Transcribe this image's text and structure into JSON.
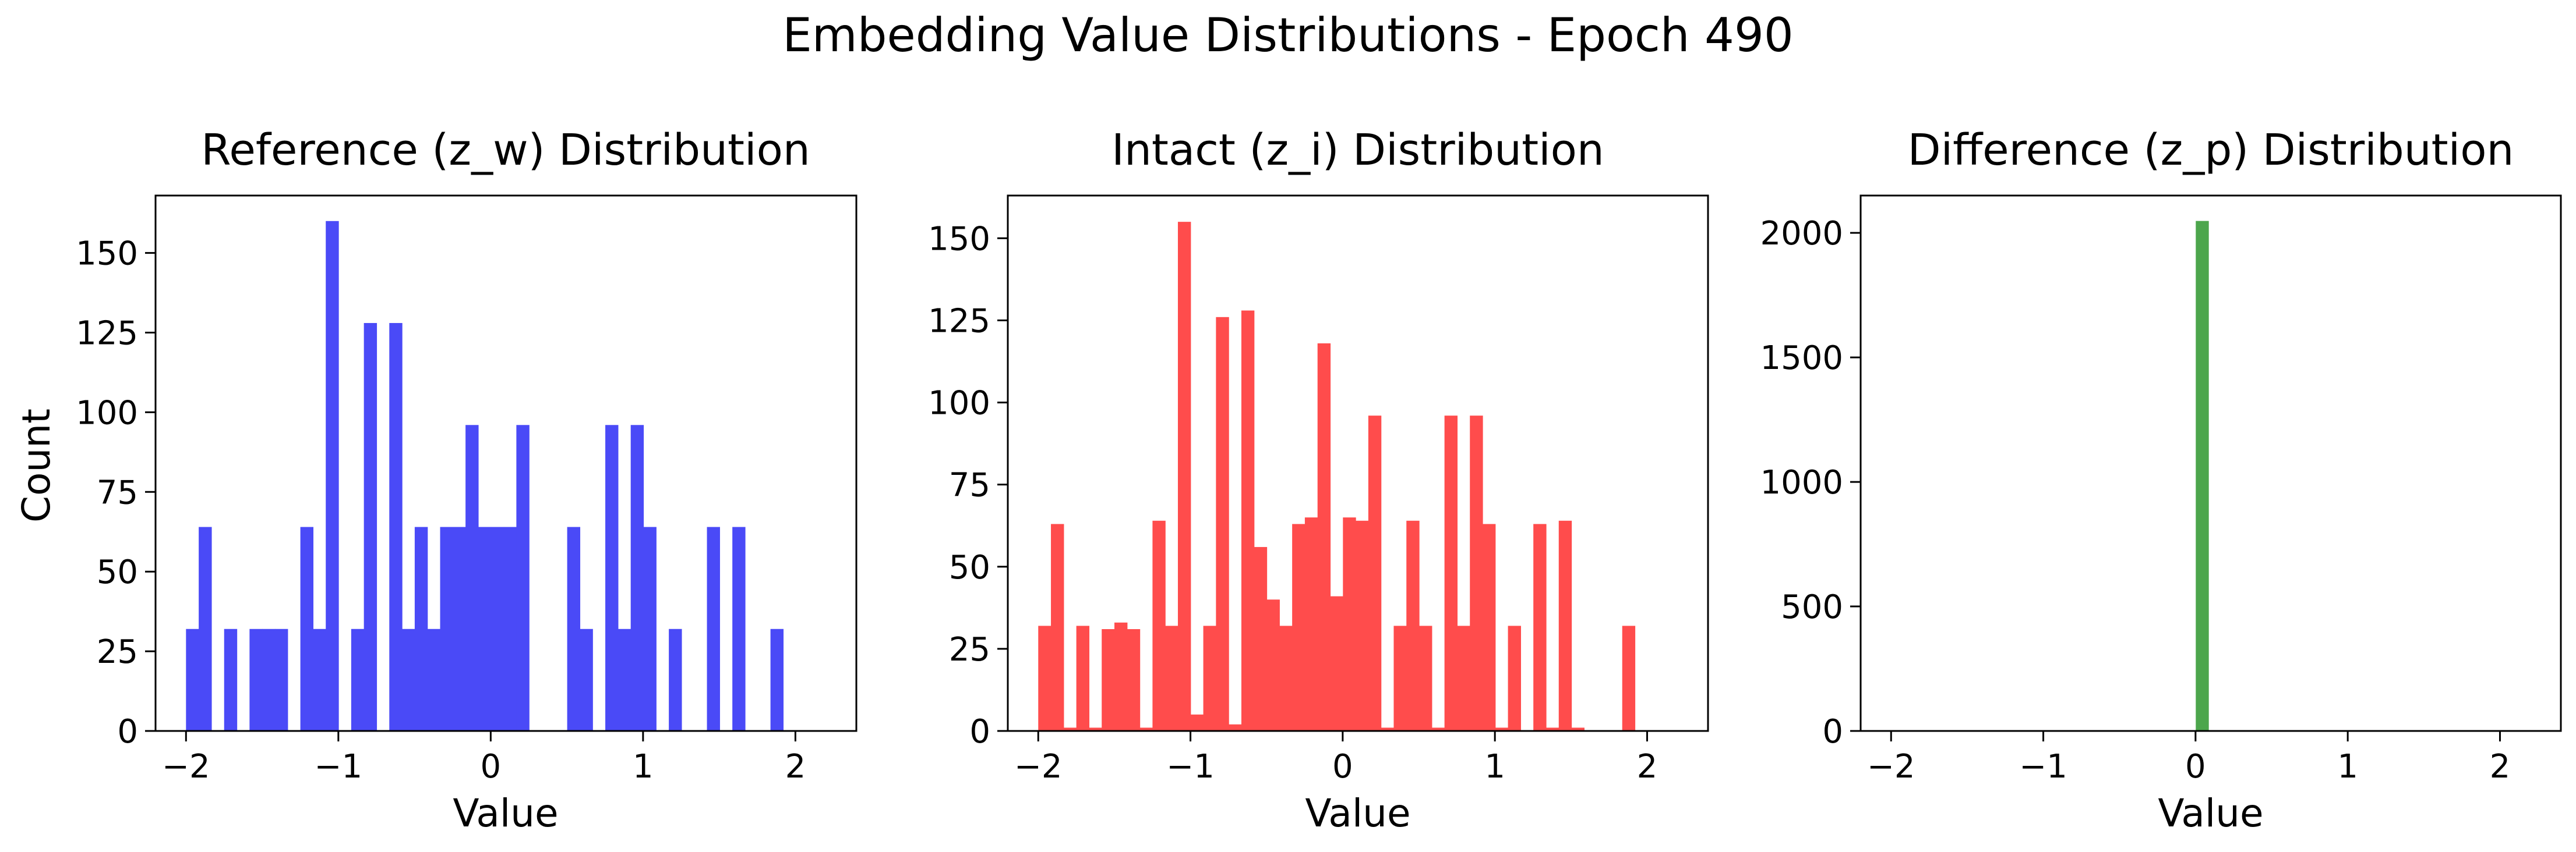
{
  "figure": {
    "title": "Embedding Value Distributions - Epoch 490"
  },
  "chart_data": [
    {
      "type": "bar",
      "title": "Reference (z_w) Distribution",
      "xlabel": "Value",
      "ylabel": "Count",
      "color": "#4a4af7",
      "xlim": [
        -2.2,
        2.4
      ],
      "ylim": [
        0,
        168
      ],
      "xticks": [
        -2,
        -1,
        0,
        1,
        2
      ],
      "xtick_labels": [
        "−2",
        "−1",
        "0",
        "1",
        "2"
      ],
      "yticks": [
        0,
        25,
        50,
        75,
        100,
        125,
        150
      ],
      "bin_start": -2.0,
      "bin_width": 0.0834,
      "values": [
        32,
        64,
        0,
        32,
        0,
        32,
        32,
        32,
        0,
        64,
        32,
        160,
        0,
        32,
        128,
        0,
        128,
        32,
        64,
        32,
        64,
        64,
        96,
        64,
        64,
        64,
        96,
        0,
        0,
        0,
        64,
        32,
        0,
        96,
        32,
        96,
        64,
        0,
        32,
        0,
        0,
        64,
        0,
        64,
        0,
        0,
        32
      ]
    },
    {
      "type": "bar",
      "title": "Intact (z_i) Distribution",
      "xlabel": "Value",
      "ylabel": "",
      "color": "#ff4c4c",
      "xlim": [
        -2.2,
        2.4
      ],
      "ylim": [
        0,
        163
      ],
      "xticks": [
        -2,
        -1,
        0,
        1,
        2
      ],
      "xtick_labels": [
        "−2",
        "−1",
        "0",
        "1",
        "2"
      ],
      "yticks": [
        0,
        25,
        50,
        75,
        100,
        125,
        150
      ],
      "bin_start": -2.0,
      "bin_width": 0.0834,
      "values": [
        32,
        63,
        1,
        32,
        1,
        31,
        33,
        31,
        1,
        64,
        32,
        155,
        5,
        32,
        126,
        2,
        128,
        56,
        40,
        32,
        63,
        65,
        118,
        41,
        65,
        64,
        96,
        1,
        32,
        64,
        32,
        1,
        96,
        32,
        96,
        63,
        1,
        32,
        0,
        63,
        1,
        64,
        1,
        0,
        0,
        0,
        32
      ]
    },
    {
      "type": "bar",
      "title": "Difference (z_p) Distribution",
      "xlabel": "Value",
      "ylabel": "",
      "color": "#4ca64c",
      "xlim": [
        -2.2,
        2.4
      ],
      "ylim": [
        0,
        2150
      ],
      "xticks": [
        -2,
        -1,
        0,
        1,
        2
      ],
      "xtick_labels": [
        "−2",
        "−1",
        "0",
        "1",
        "2"
      ],
      "yticks": [
        0,
        500,
        1000,
        1500,
        2000
      ],
      "bin_start": -2.0,
      "bin_width": 0.0834,
      "values": [
        0,
        0,
        0,
        0,
        0,
        0,
        0,
        0,
        0,
        0,
        0,
        0,
        0,
        0,
        0,
        0,
        0,
        0,
        0,
        0,
        0,
        0,
        0,
        0,
        2048,
        0,
        0,
        0,
        0,
        0,
        0,
        0,
        0,
        0,
        0,
        0,
        0,
        0,
        0,
        0,
        0,
        0,
        0,
        0,
        0,
        0,
        0
      ]
    }
  ]
}
